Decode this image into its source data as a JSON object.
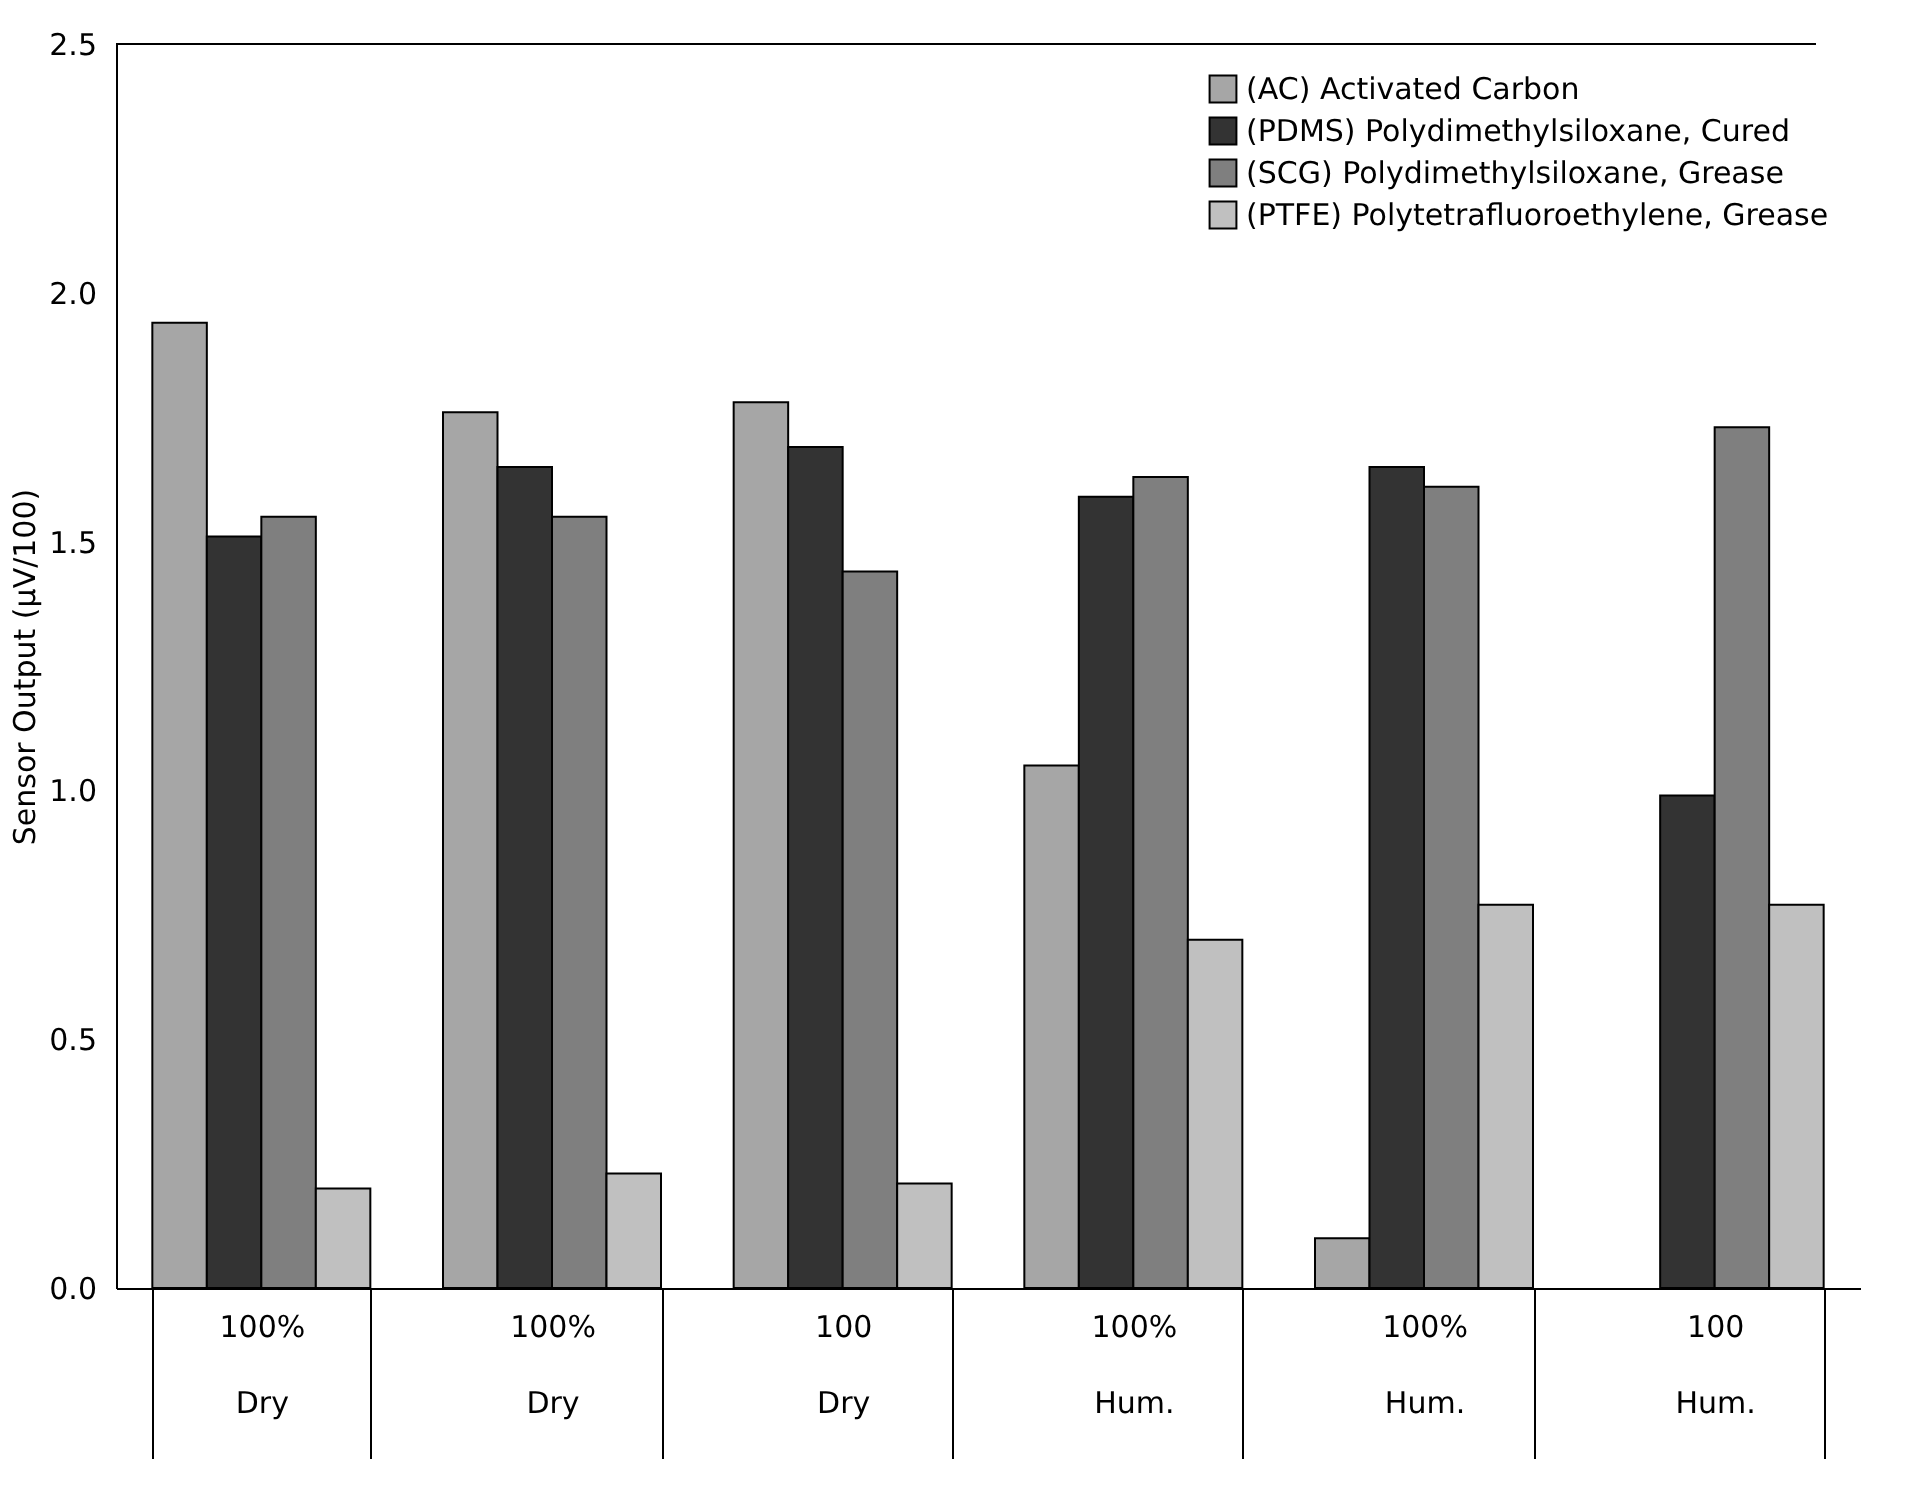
{
  "chart_data": {
    "type": "bar",
    "ylabel": "Sensor Output (µV/100)",
    "categories": [
      "100%\nDry",
      "100%\nDry",
      "100\nDry",
      "100%\nHum.",
      "100%\nHum.",
      "100\nHum."
    ],
    "series": [
      {
        "name": "(AC) Activated Carbon",
        "color": "#a6a6a6",
        "values": [
          1.94,
          1.76,
          1.78,
          1.05,
          0.1,
          null
        ]
      },
      {
        "name": "(PDMS) Polydimethylsiloxane, Cured",
        "color": "#333333",
        "values": [
          1.51,
          1.65,
          1.69,
          1.59,
          1.65,
          0.99
        ]
      },
      {
        "name": "(SCG) Polydimethylsiloxane, Grease",
        "color": "#7f7f7f",
        "values": [
          1.55,
          1.55,
          1.44,
          1.63,
          1.61,
          1.73
        ]
      },
      {
        "name": "(PTFE) Polytetrafluoroethylene, Grease",
        "color": "#c0c0c0",
        "values": [
          0.2,
          0.23,
          0.21,
          0.7,
          0.77,
          0.77
        ]
      }
    ],
    "ylim": [
      0,
      2.5
    ],
    "yticks": [
      {
        "value": 0,
        "label": "0.0"
      },
      0.5,
      {
        "value": 1,
        "label": "1.0"
      },
      1.5,
      {
        "value": 2,
        "label": "2.0"
      },
      2.5
    ],
    "grid": false,
    "legend": "top right"
  }
}
